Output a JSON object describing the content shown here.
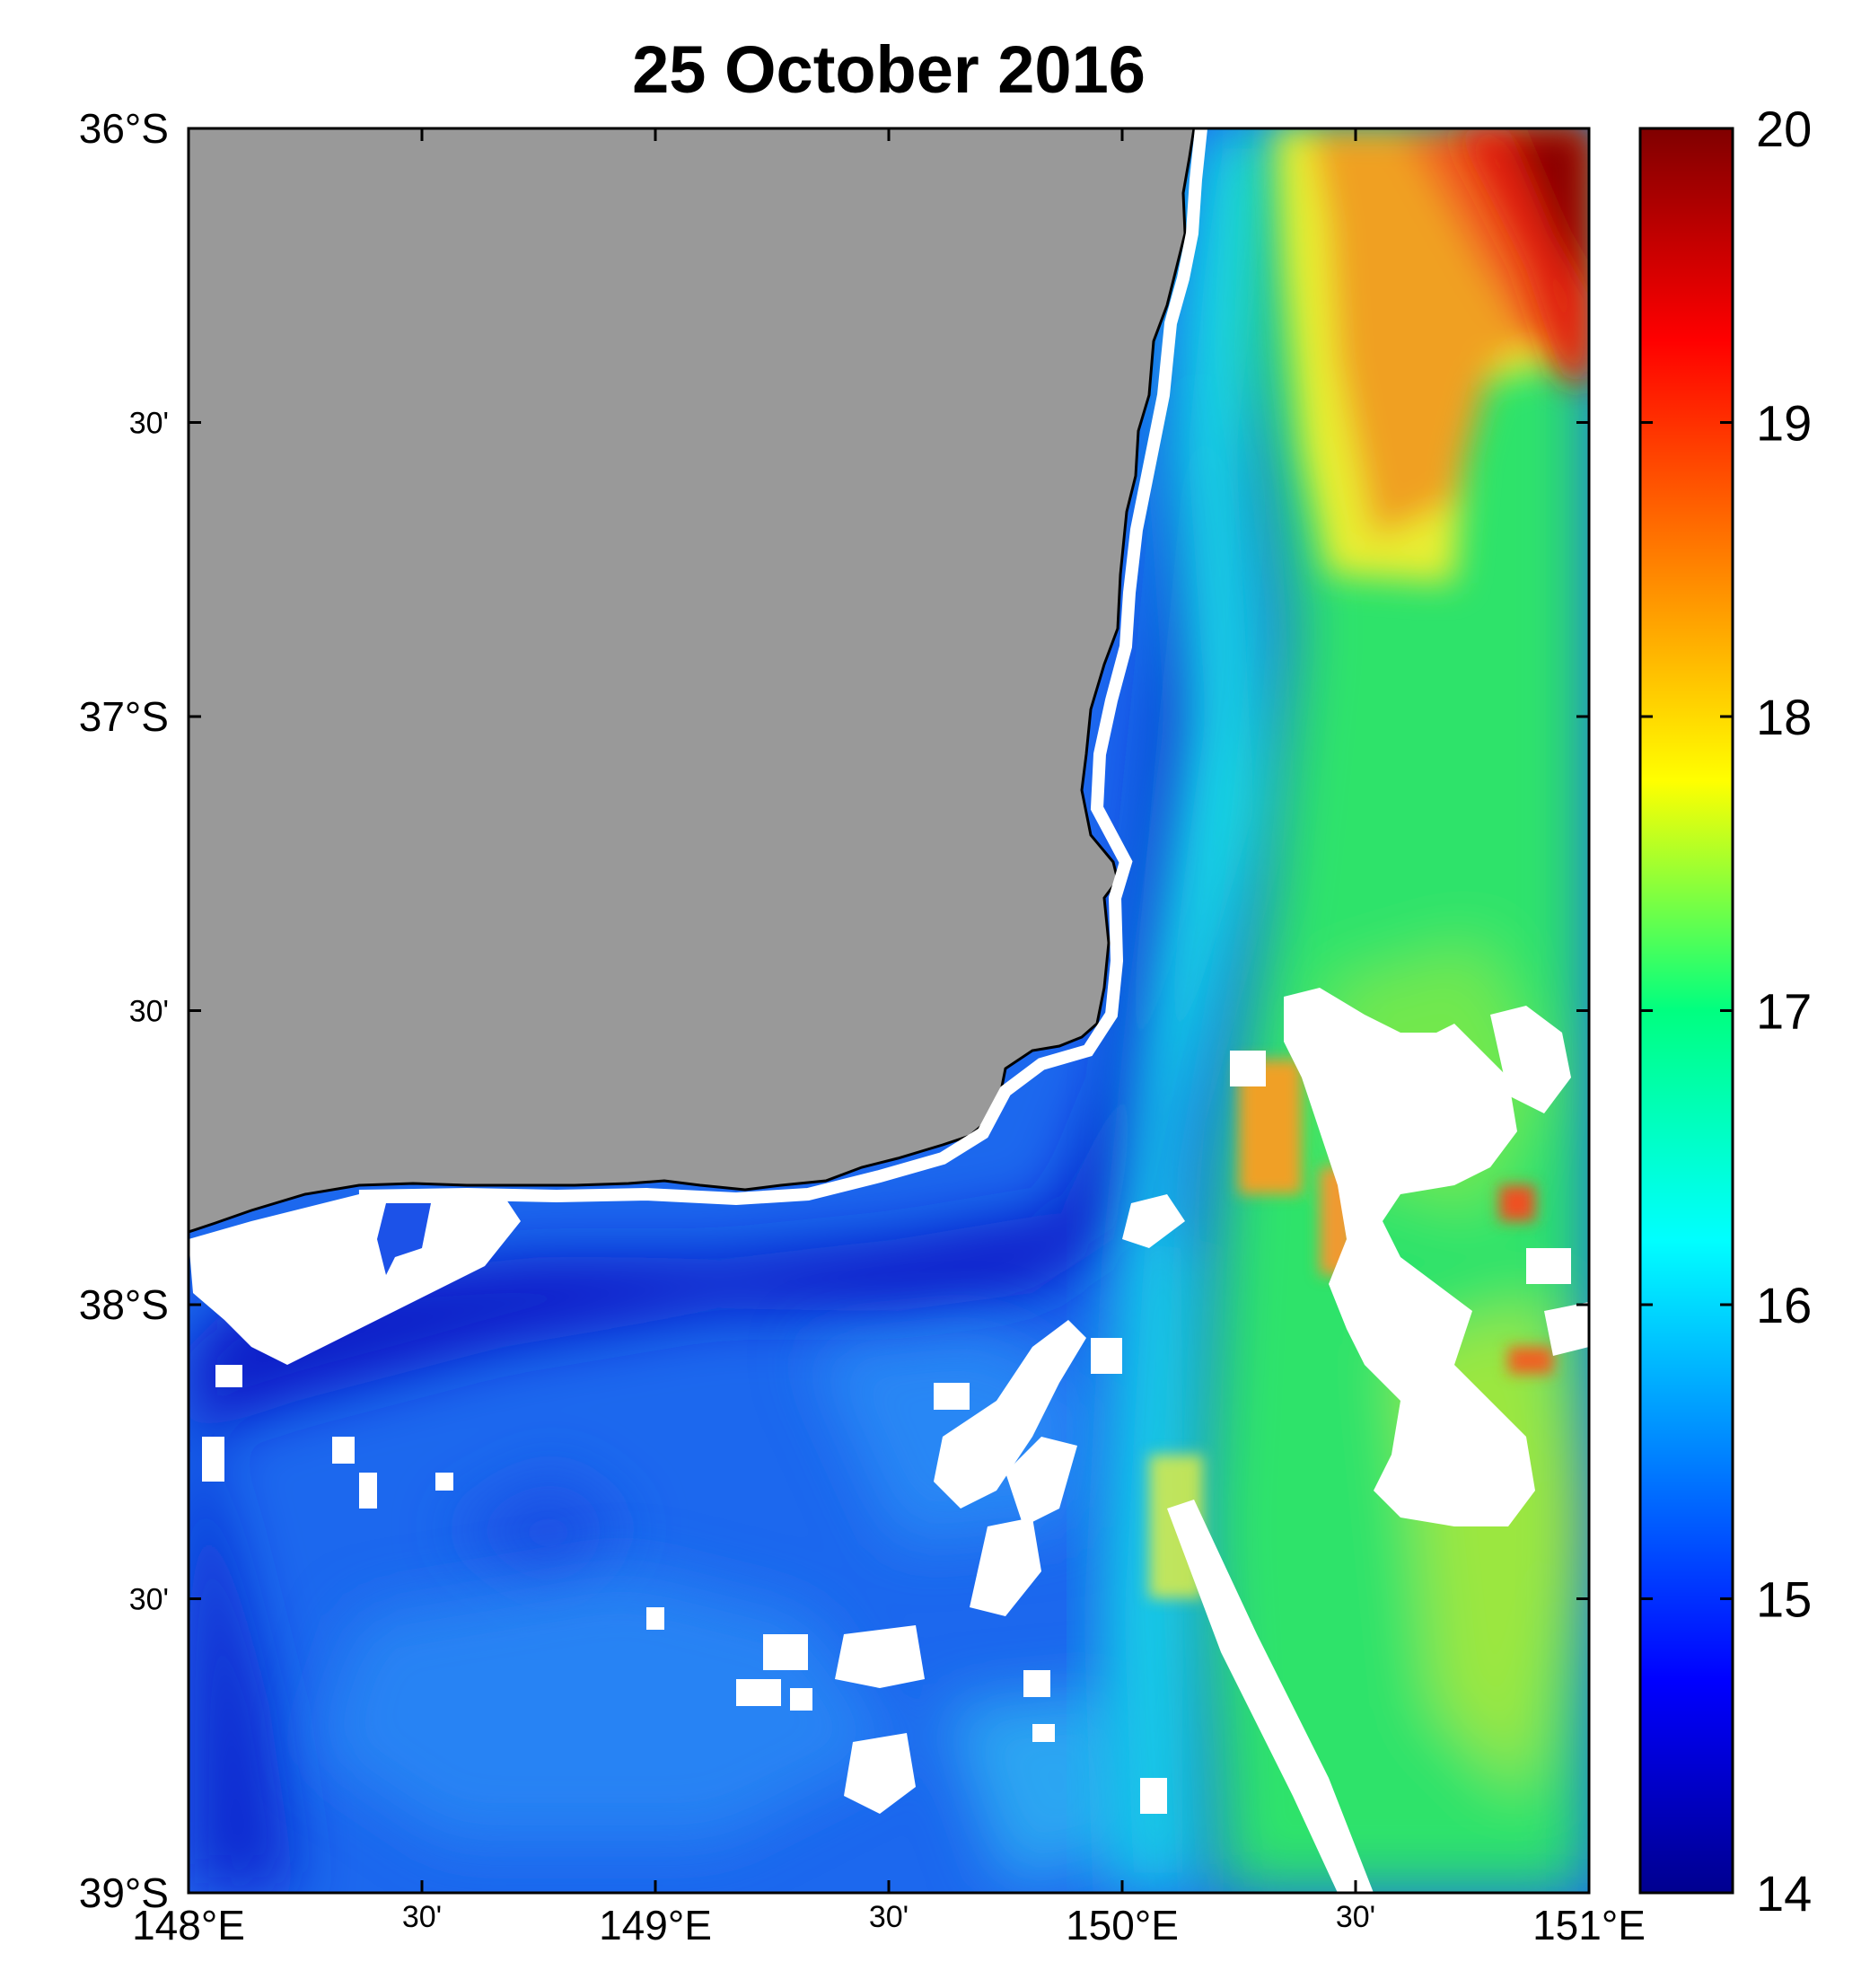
{
  "title": "25 October 2016",
  "latitude_ticks": [
    {
      "value": -36.0,
      "label": "36°S",
      "minor": false
    },
    {
      "value": -36.5,
      "label": "30'",
      "minor": true
    },
    {
      "value": -37.0,
      "label": "37°S",
      "minor": false
    },
    {
      "value": -37.5,
      "label": "30'",
      "minor": true
    },
    {
      "value": -38.0,
      "label": "38°S",
      "minor": false
    },
    {
      "value": -38.5,
      "label": "30'",
      "minor": true
    },
    {
      "value": -39.0,
      "label": "39°S",
      "minor": false
    }
  ],
  "longitude_ticks": [
    {
      "value": 148.0,
      "label": "148°E",
      "minor": false
    },
    {
      "value": 148.5,
      "label": "30'",
      "minor": true
    },
    {
      "value": 149.0,
      "label": "149°E",
      "minor": false
    },
    {
      "value": 149.5,
      "label": "30'",
      "minor": true
    },
    {
      "value": 150.0,
      "label": "150°E",
      "minor": false
    },
    {
      "value": 150.5,
      "label": "30'",
      "minor": true
    },
    {
      "value": 151.0,
      "label": "151°E",
      "minor": false
    }
  ],
  "colorbar": {
    "min": 14,
    "max": 20,
    "ticks": [
      {
        "value": 20,
        "label": "20"
      },
      {
        "value": 19,
        "label": "19"
      },
      {
        "value": 18,
        "label": "18"
      },
      {
        "value": 17,
        "label": "17"
      },
      {
        "value": 16,
        "label": "16"
      },
      {
        "value": 15,
        "label": "15"
      },
      {
        "value": 14,
        "label": "14"
      }
    ],
    "colormap": "jet"
  },
  "colors": {
    "land": "#999999",
    "no_data": "#ffffff",
    "coast": "#000000",
    "cold": "#0a1fc8",
    "cool": "#1e6ef0",
    "cyan": "#10e0e0",
    "green": "#30e060",
    "yellow": "#e6f030",
    "orange": "#f09020",
    "warm": "#e02010",
    "hot": "#8a0000"
  },
  "map_extent": {
    "lon": [
      148.0,
      151.0
    ],
    "lat": [
      -39.0,
      -36.0
    ]
  }
}
